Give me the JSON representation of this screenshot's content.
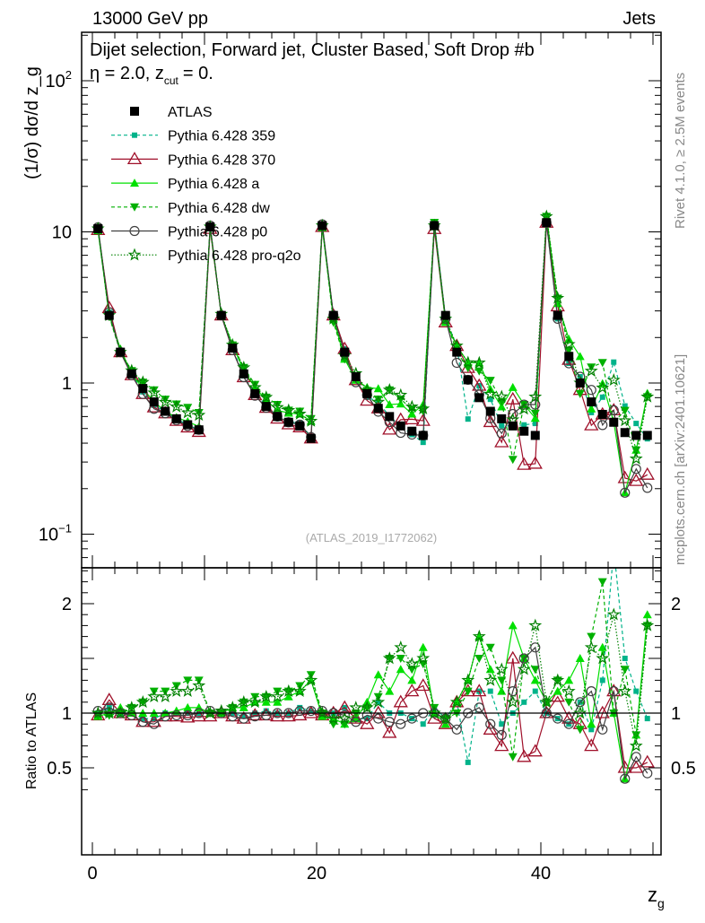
{
  "header": {
    "left": "13000 GeV pp",
    "right": "Jets"
  },
  "title": {
    "main": "Dijet selection, Forward jet, Cluster Based, Soft Drop #b",
    "eta": "η = 2.0, z",
    "cut": "cut",
    "tail": "= 0."
  },
  "side": {
    "rivet": "Rivet 4.1.0, ≥ 2.5M events",
    "mcplots": "mcplots.cern.ch [arXiv:2401.10621]"
  },
  "watermark": "(ATLAS_2019_I1772062)",
  "chart_data": {
    "type": "line",
    "xlabel": "z_g",
    "ylabel": "(1/σ) dσ/d z_g",
    "ratio_ylabel": "Ratio to ATLAS",
    "xlim": [
      -1,
      50.7
    ],
    "ylim": [
      0.065,
      150
    ],
    "yscale": "log",
    "ratio_ylim": [
      0.3,
      2.33
    ],
    "xticks": [
      "0",
      "20",
      "40"
    ],
    "yticks": [
      {
        "v": 100,
        "base": "10",
        "exp": "2"
      },
      {
        "v": 10,
        "base": "10",
        "exp": ""
      },
      {
        "v": 1,
        "base": "1",
        "exp": ""
      },
      {
        "v": 0.1,
        "base": "10",
        "exp": "−1"
      }
    ],
    "ratio_yticks": [
      "0.5",
      "1",
      "2"
    ],
    "xlabel_main": "z",
    "xlabel_sub": "g",
    "legend_placement": "top-left",
    "x": [
      0.5,
      1.5,
      2.5,
      3.5,
      4.5,
      5.5,
      6.5,
      7.5,
      8.5,
      9.5,
      10.5,
      11.5,
      12.5,
      13.5,
      14.5,
      15.5,
      16.5,
      17.5,
      18.5,
      19.5,
      20.5,
      21.5,
      22.5,
      23.5,
      24.5,
      25.5,
      26.5,
      27.5,
      28.5,
      29.5,
      30.5,
      31.5,
      32.5,
      33.5,
      34.5,
      35.5,
      36.5,
      37.5,
      38.5,
      39.5,
      40.5,
      41.5,
      42.5,
      43.5,
      44.5,
      45.5,
      46.5,
      47.5,
      48.5,
      49.5
    ],
    "data": {
      "name": "ATLAS",
      "values": [
        10.5,
        2.8,
        1.6,
        1.15,
        0.92,
        0.75,
        0.65,
        0.58,
        0.53,
        0.49,
        10.8,
        2.8,
        1.7,
        1.15,
        0.85,
        0.7,
        0.6,
        0.55,
        0.52,
        0.43,
        11,
        2.8,
        1.6,
        1.1,
        0.85,
        0.68,
        0.6,
        0.52,
        0.48,
        0.45,
        11,
        2.8,
        1.6,
        1.05,
        0.8,
        0.65,
        0.58,
        0.52,
        0.48,
        0.45,
        11.5,
        2.8,
        1.5,
        1.0,
        0.75,
        0.62,
        0.55,
        0.47,
        0.45,
        0.45
      ]
    },
    "series": [
      {
        "name": "Pythia 6.428 359",
        "color": "#00b38a",
        "dash": "4,3",
        "marker": "square-small",
        "ratio": [
          1,
          1.05,
          1,
          1,
          0.95,
          0.95,
          1,
          1,
          1,
          1,
          1,
          1,
          1,
          0.97,
          1,
          1.02,
          1,
          1,
          1.05,
          1.02,
          1,
          1,
          1.05,
          0.95,
          0.95,
          1.1,
          1,
          1,
          0.95,
          0.9,
          1.05,
          0.95,
          1.1,
          0.55,
          1.2,
          1.2,
          0.9,
          1,
          1.1,
          1.2,
          1,
          0.95,
          0.9,
          1.1,
          0.85,
          1.3,
          2.5,
          1.5,
          1.2,
          0.95
        ]
      },
      {
        "name": "Pythia 6.428 370",
        "color": "#a0102a",
        "dash": "",
        "marker": "triangle-open",
        "ratio": [
          0.98,
          1.12,
          1,
          0.98,
          0.92,
          0.92,
          0.97,
          0.97,
          0.96,
          0.97,
          0.97,
          1.0,
          0.97,
          0.95,
          0.98,
          0.98,
          0.97,
          0.97,
          0.98,
          1.0,
          0.98,
          1.0,
          1.05,
          0.95,
          0.9,
          1.0,
          0.82,
          1.1,
          1.2,
          1.25,
          0.95,
          0.9,
          1.1,
          1.2,
          1.2,
          0.85,
          0.7,
          1.5,
          0.6,
          0.65,
          1.0,
          1.15,
          0.95,
          0.9,
          0.7,
          1.0,
          1.2,
          0.5,
          0.5,
          0.55
        ]
      },
      {
        "name": "Pythia 6.428 a",
        "color": "#00e000",
        "dash": "",
        "marker": "triangle-up",
        "ratio": [
          0.97,
          1.0,
          1.05,
          1.0,
          1.0,
          1.0,
          1.0,
          1.02,
          1.05,
          1.05,
          1.0,
          1.0,
          1.05,
          1.05,
          1.1,
          1.1,
          1.1,
          1.15,
          1.2,
          1.3,
          0.97,
          0.95,
          0.9,
          0.95,
          1.1,
          1.35,
          1.2,
          1.4,
          1.3,
          1.6,
          1.0,
          0.9,
          1.1,
          1.3,
          1.7,
          1.4,
          1.2,
          1.8,
          1.5,
          1.3,
          1.1,
          1.2,
          1.3,
          1.5,
          0.9,
          1.6,
          1.0,
          0.4,
          0.8,
          1.9
        ]
      },
      {
        "name": "Pythia 6.428 dw",
        "color": "#00b000",
        "dash": "4,3",
        "marker": "triangle-down",
        "ratio": [
          0.98,
          0.98,
          1.0,
          1.05,
          1.1,
          1.2,
          1.2,
          1.25,
          1.3,
          1.3,
          1.0,
          1.0,
          1.05,
          1.1,
          1.15,
          1.15,
          1.2,
          1.2,
          1.25,
          1.35,
          1.0,
          0.9,
          0.9,
          1.0,
          1.05,
          1.15,
          1.5,
          1.5,
          1.4,
          1.45,
          1.05,
          0.95,
          1.0,
          1.2,
          1.5,
          1.6,
          1.3,
          0.6,
          1.5,
          1.4,
          1.1,
          1.3,
          1.1,
          0.85,
          1.7,
          2.2,
          1.0,
          1.4,
          0.8,
          1.8
        ]
      },
      {
        "name": "Pythia 6.428 p0",
        "color": "#404040",
        "dash": "",
        "marker": "circle-open",
        "ratio": [
          1.02,
          1.05,
          1.0,
          0.98,
          0.92,
          0.9,
          0.97,
          0.98,
          0.98,
          1.0,
          1.02,
          1.0,
          0.97,
          0.95,
          0.97,
          0.98,
          1.0,
          1.0,
          1.02,
          1.02,
          1.02,
          1.0,
          0.98,
          0.92,
          0.98,
          0.95,
          0.92,
          0.9,
          0.95,
          1.0,
          1.0,
          0.95,
          0.85,
          1.0,
          1.05,
          0.9,
          0.8,
          1.2,
          1.5,
          1.6,
          1.0,
          0.95,
          0.9,
          1.1,
          1.2,
          0.85,
          1.2,
          0.4,
          0.6,
          0.45
        ]
      },
      {
        "name": "Pythia 6.428 pro-q2o",
        "color": "#008000",
        "dash": "1.5,2",
        "marker": "star",
        "ratio": [
          1.0,
          1.0,
          1.0,
          1.05,
          1.1,
          1.15,
          1.15,
          1.2,
          1.2,
          1.25,
          1.0,
          1.02,
          1.05,
          1.1,
          1.1,
          1.15,
          1.15,
          1.2,
          1.2,
          1.3,
          1.0,
          0.95,
          0.95,
          1.05,
          1.05,
          1.1,
          1.5,
          1.6,
          1.45,
          1.5,
          1.0,
          0.95,
          1.1,
          1.3,
          1.7,
          1.3,
          1.4,
          1.1,
          1.4,
          1.8,
          1.1,
          1.3,
          1.2,
          1.0,
          1.6,
          1.5,
          1.9,
          1.2,
          0.7,
          1.8
        ]
      }
    ]
  }
}
